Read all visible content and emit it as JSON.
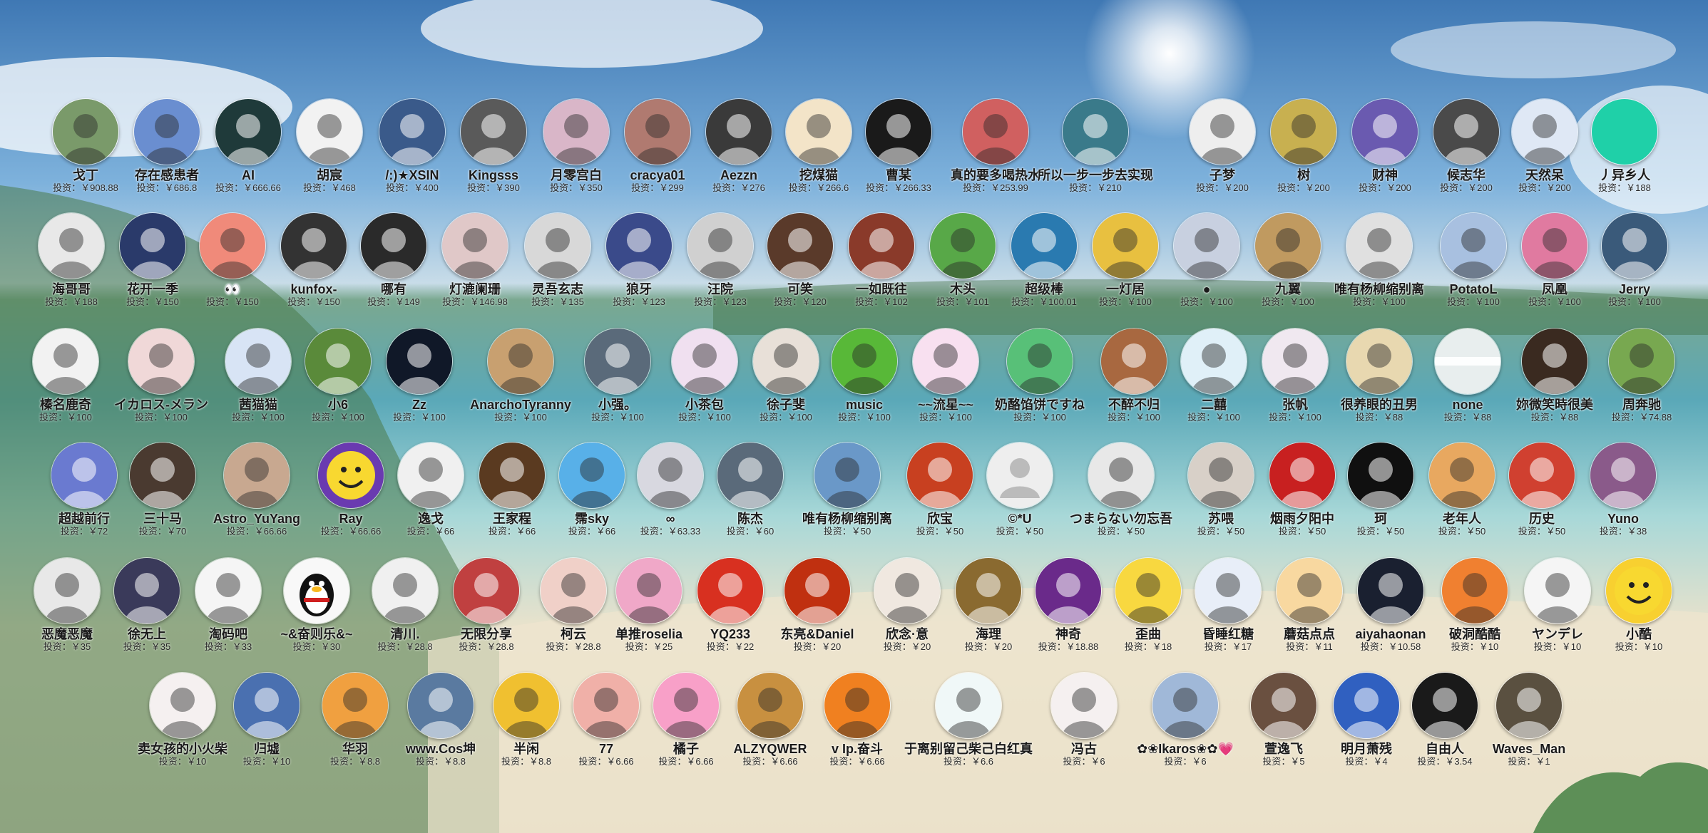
{
  "donors": [
    [
      {
        "name": "戈丁",
        "amount": "投资：￥908.88",
        "color": "#7a9a6a",
        "icon": "avatar-anime-boy"
      },
      {
        "name": "存在感患者",
        "amount": "投资：￥686.8",
        "color": "#6a8ed0",
        "icon": "avatar-anime-battle"
      },
      {
        "name": "AI",
        "amount": "投资：￥666.66",
        "color": "#1f3a3a",
        "icon": "avatar-hooded-figure"
      },
      {
        "name": "胡宸",
        "amount": "投资：￥468",
        "color": "#f2f2f2",
        "icon": "avatar-cartoon-cat"
      },
      {
        "name": "/:)★XSIN",
        "amount": "投资：￥400",
        "color": "#3a5a8a",
        "icon": "avatar-starry-cat"
      },
      {
        "name": "Kingsss",
        "amount": "投资：￥390",
        "color": "#5a5a5a",
        "icon": "avatar-bw-street"
      },
      {
        "name": "月零宫白",
        "amount": "投资：￥350",
        "color": "#d9b6c8",
        "icon": "avatar-anime-girl"
      },
      {
        "name": "cracya01",
        "amount": "投资：￥299",
        "color": "#b07a70",
        "icon": "avatar-anime-duo"
      },
      {
        "name": "Aezzn",
        "amount": "投资：￥276",
        "color": "#3a3a3a",
        "icon": "avatar-dark-sphere"
      },
      {
        "name": "挖煤猫",
        "amount": "投资：￥266.6",
        "color": "#f3e4c8",
        "icon": "avatar-cartoon-cat"
      },
      {
        "name": "曹某",
        "amount": "投资：￥266.33",
        "color": "#1a1a1a",
        "icon": "avatar-dark-hand"
      },
      {
        "name": "真的要多喝热水",
        "amount": "投资：￥253.99",
        "color": "#d06060",
        "icon": "avatar-monkey"
      },
      {
        "name": "所以一步一步去实现",
        "amount": "投资：￥210",
        "color": "#3a7a8a",
        "icon": "avatar-seascape"
      },
      {
        "name": "子梦",
        "amount": "投资：￥200",
        "color": "#eeeeee",
        "icon": "avatar-sketch-girl"
      },
      {
        "name": "树",
        "amount": "投资：￥200",
        "color": "#c8b050",
        "icon": "avatar-clown"
      },
      {
        "name": "财神",
        "amount": "投资：￥200",
        "color": "#6a5ab0",
        "icon": "avatar-rabbit"
      },
      {
        "name": "候志华",
        "amount": "投资：￥200",
        "color": "#4a4a4a",
        "icon": "avatar-man-glasses"
      },
      {
        "name": "天然呆",
        "amount": "投资：￥200",
        "color": "#dfe8f5",
        "icon": "avatar-bunny"
      },
      {
        "name": "丿异乡人",
        "amount": "投资：￥188",
        "color": "#1fd0a8",
        "icon": "avatar-teal-circle"
      }
    ],
    [
      {
        "name": "海哥哥",
        "amount": "投资：￥188",
        "color": "#e8e8e8",
        "icon": "avatar-ink-dragon"
      },
      {
        "name": "花开一季",
        "amount": "投资：￥150",
        "color": "#2a3a6a",
        "icon": "avatar-man-suit"
      },
      {
        "name": "👀",
        "amount": "投资：￥150",
        "color": "#f08a7a",
        "icon": "avatar-3d-baby"
      },
      {
        "name": "kunfox-",
        "amount": "投资：￥150",
        "color": "#333333",
        "icon": "avatar-otaku"
      },
      {
        "name": "哪有",
        "amount": "投资：￥149",
        "color": "#2a2a2a",
        "icon": "avatar-black-orb"
      },
      {
        "name": "灯漉阑珊",
        "amount": "投资：￥146.98",
        "color": "#e0c8c8",
        "icon": "avatar-girl-face"
      },
      {
        "name": "灵吾玄志",
        "amount": "投资：￥135",
        "color": "#d8d8d8",
        "icon": "avatar-manga-hero"
      },
      {
        "name": "狼牙",
        "amount": "投资：￥123",
        "color": "#3a4a8a",
        "icon": "avatar-anime-scarf"
      },
      {
        "name": "汪院",
        "amount": "投资：￥123",
        "color": "#d0d0d0",
        "icon": "avatar-man-portrait"
      },
      {
        "name": "可笑",
        "amount": "投资：￥120",
        "color": "#5a3a2a",
        "icon": "avatar-child"
      },
      {
        "name": "一如既往",
        "amount": "投资：￥102",
        "color": "#8a3a2a",
        "icon": "avatar-warrior"
      },
      {
        "name": "木头",
        "amount": "投资：￥101",
        "color": "#58a848",
        "icon": "avatar-green-cartoon"
      },
      {
        "name": "超级棒",
        "amount": "投资：￥100.01",
        "color": "#2a7ab0",
        "icon": "avatar-blue-mecha"
      },
      {
        "name": "一灯居",
        "amount": "投资：￥100",
        "color": "#e8c040",
        "icon": "avatar-psyduck"
      },
      {
        "name": "●",
        "amount": "投资：￥100",
        "color": "#c8d0e0",
        "icon": "avatar-anime-hair"
      },
      {
        "name": "九翼",
        "amount": "投资：￥100",
        "color": "#c09a60",
        "icon": "avatar-golden-figure"
      },
      {
        "name": "唯有杨柳缩别离",
        "amount": "投资：￥100",
        "color": "#e0e0e0",
        "icon": "avatar-sketch-girl"
      },
      {
        "name": "PotatoL",
        "amount": "投资：￥100",
        "color": "#a8c0e0",
        "icon": "avatar-anime-mage"
      },
      {
        "name": "凤凰",
        "amount": "投资：￥100",
        "color": "#e07aa0",
        "icon": "avatar-pink-animal"
      },
      {
        "name": "Jerry",
        "amount": "投资：￥100",
        "color": "#3a5a7a",
        "icon": "avatar-man-road"
      }
    ],
    [
      {
        "name": "榛名鹿奇",
        "amount": "投资：￥100",
        "color": "#f2f2f2",
        "icon": "avatar-sketch-girl"
      },
      {
        "name": "イカロス-メラン",
        "amount": "投资：￥100",
        "color": "#f0d8d8",
        "icon": "avatar-anime-girl"
      },
      {
        "name": "茜猫猫",
        "amount": "投资：￥100",
        "color": "#d8e4f5",
        "icon": "avatar-anime-girl"
      },
      {
        "name": "小6",
        "amount": "投资：￥100",
        "color": "#5a8a3a",
        "icon": "avatar-zoro"
      },
      {
        "name": "Zz",
        "amount": "投资：￥100",
        "color": "#101828",
        "icon": "avatar-dark-figure"
      },
      {
        "name": "AnarchoTyranny",
        "amount": "投资：￥100",
        "color": "#c8a070",
        "icon": "avatar-anime-boy"
      },
      {
        "name": "小强。",
        "amount": "投资：￥100",
        "color": "#5a6a7a",
        "icon": "avatar-anime-lying"
      },
      {
        "name": "小茶包",
        "amount": "投资：￥100",
        "color": "#f0e0f0",
        "icon": "avatar-anime-girl"
      },
      {
        "name": "徐子斐",
        "amount": "投资：￥100",
        "color": "#e8e0d8",
        "icon": "avatar-girl-face"
      },
      {
        "name": "music",
        "amount": "投资：￥100",
        "color": "#58b838",
        "icon": "avatar-penguin"
      },
      {
        "name": "~~流星~~",
        "amount": "投资：￥100",
        "color": "#f8e0f0",
        "icon": "avatar-lotus"
      },
      {
        "name": "奶酪馅饼ですね",
        "amount": "投资：￥100",
        "color": "#58c078",
        "icon": "avatar-green-hair"
      },
      {
        "name": "不醉不归",
        "amount": "投资：￥100",
        "color": "#a86840",
        "icon": "avatar-bear"
      },
      {
        "name": "二囍",
        "amount": "投资：￥100",
        "color": "#e0f0f8",
        "icon": "avatar-white-cat"
      },
      {
        "name": "张帆",
        "amount": "投资：￥100",
        "color": "#f0e8f0",
        "icon": "avatar-fox"
      },
      {
        "name": "很养眼的丑男",
        "amount": "投资：￥88",
        "color": "#e8d8b0",
        "icon": "avatar-cartoon-boy"
      },
      {
        "name": "none",
        "amount": "投资：￥88",
        "color": "#e8eeee",
        "icon": "avatar-blank"
      },
      {
        "name": "妳微笑時很美",
        "amount": "投资：￥88",
        "color": "#3a2a20",
        "icon": "avatar-man-portrait"
      },
      {
        "name": "周奔驰",
        "amount": "投资：￥74.88",
        "color": "#78a850",
        "icon": "avatar-landscape"
      }
    ],
    [
      {
        "name": "超越前行",
        "amount": "投资：￥72",
        "color": "#6a7ad0",
        "icon": "avatar-jets"
      },
      {
        "name": "三十马",
        "amount": "投资：￥70",
        "color": "#4a3a30",
        "icon": "avatar-anime-knight"
      },
      {
        "name": "Astro_YuYang",
        "amount": "投资：￥66.66",
        "color": "#c8a890",
        "icon": "avatar-anime-boy"
      },
      {
        "name": "Ray",
        "amount": "投资：￥66.66",
        "color": "#6a3ab0",
        "icon": "avatar-smiley"
      },
      {
        "name": "逸戈",
        "amount": "投资：￥66",
        "color": "#f0f0f0",
        "icon": "avatar-white-cat"
      },
      {
        "name": "王家程",
        "amount": "投资：￥66",
        "color": "#5a3a20",
        "icon": "avatar-bear"
      },
      {
        "name": "霈sky",
        "amount": "投资：￥66",
        "color": "#58b0e8",
        "icon": "avatar-squirtle"
      },
      {
        "name": "∞",
        "amount": "投资：￥63.33",
        "color": "#d8d8e0",
        "icon": "avatar-anime-boy"
      },
      {
        "name": "陈杰",
        "amount": "投资：￥60",
        "color": "#5a6a7a",
        "icon": "avatar-cat-eye"
      },
      {
        "name": "唯有杨柳缩别离",
        "amount": "投资：￥50",
        "color": "#6a98c8",
        "icon": "avatar-ice-figure"
      },
      {
        "name": "欣宝",
        "amount": "投资：￥50",
        "color": "#c84020",
        "icon": "avatar-xing-char"
      },
      {
        "name": "©*U",
        "amount": "投资：￥50",
        "color": "#eeeeee",
        "icon": "avatar-default-user"
      },
      {
        "name": "つまらない勿忘吾",
        "amount": "投资：￥50",
        "color": "#e8e8e8",
        "icon": "avatar-sketch-boy"
      },
      {
        "name": "苏喂",
        "amount": "投资：￥50",
        "color": "#d8d0c8",
        "icon": "avatar-anime-boy"
      },
      {
        "name": "烟雨夕阳中",
        "amount": "投资：￥50",
        "color": "#c82020",
        "icon": "avatar-lucky-bag"
      },
      {
        "name": "珂",
        "amount": "投资：￥50",
        "color": "#101010",
        "icon": "avatar-line-art"
      },
      {
        "name": "老年人",
        "amount": "投资：￥50",
        "color": "#e8a860",
        "icon": "avatar-shiba"
      },
      {
        "name": "历史",
        "amount": "投资：￥50",
        "color": "#d04030",
        "icon": "avatar-cool-face"
      },
      {
        "name": "Yuno",
        "amount": "投资：￥38",
        "color": "#8a5a8a",
        "icon": "avatar-anime-girl"
      }
    ],
    [
      {
        "name": "恶魔恶魔",
        "amount": "投资：￥35",
        "color": "#e8e8e8",
        "icon": "avatar-sketch-girl"
      },
      {
        "name": "徐无上",
        "amount": "投资：￥35",
        "color": "#3a3a5a",
        "icon": "avatar-anime-girl"
      },
      {
        "name": "淘码吧",
        "amount": "投资：￥33",
        "color": "#f5f5f5",
        "icon": "avatar-panda-meme"
      },
      {
        "name": "~&奋则乐&~",
        "amount": "投资：￥30",
        "color": "#f8f8f8",
        "icon": "avatar-qq-penguin"
      },
      {
        "name": "清川.",
        "amount": "投资：￥28.8",
        "color": "#f0f0f0",
        "icon": "avatar-bw-man"
      },
      {
        "name": "无限分享",
        "amount": "投资：￥28.8",
        "color": "#c04040",
        "icon": "avatar-opera-mask"
      },
      {
        "name": "柯云",
        "amount": "投资：￥28.8",
        "color": "#f0d0c8",
        "icon": "avatar-cute-girl"
      },
      {
        "name": "单推roselia",
        "amount": "投资：￥25",
        "color": "#f0a8c8",
        "icon": "avatar-anime-girl"
      },
      {
        "name": "YQ233",
        "amount": "投资：￥22",
        "color": "#d83020",
        "icon": "avatar-cartoon-boy"
      },
      {
        "name": "东亮&Daniel",
        "amount": "投资：￥20",
        "color": "#c03010",
        "icon": "avatar-fire-horse"
      },
      {
        "name": "欣念·意",
        "amount": "投资：￥20",
        "color": "#f0e8e0",
        "icon": "avatar-anime-girl"
      },
      {
        "name": "海理",
        "amount": "投资：￥20",
        "color": "#8a6a30",
        "icon": "avatar-corridor"
      },
      {
        "name": "神奇",
        "amount": "投资：￥18.88",
        "color": "#6a2a8a",
        "icon": "avatar-anime-girl"
      },
      {
        "name": "歪曲",
        "amount": "投资：￥18",
        "color": "#f8d840",
        "icon": "avatar-black-cat"
      },
      {
        "name": "昏睡红糖",
        "amount": "投资：￥17",
        "color": "#e8eef8",
        "icon": "avatar-anime-girl"
      },
      {
        "name": "蘑菇点点",
        "amount": "投资：￥11",
        "color": "#f8d8a0",
        "icon": "avatar-cartoon-chick"
      },
      {
        "name": "aiyahaonan",
        "amount": "投资：￥10.58",
        "color": "#1a2030",
        "icon": "avatar-dark-sphere"
      },
      {
        "name": "破洞酷酷",
        "amount": "投资：￥10",
        "color": "#f08030",
        "icon": "avatar-anime-orange"
      },
      {
        "name": "ヤンデレ",
        "amount": "投资：￥10",
        "color": "#f5f5f5",
        "icon": "avatar-sketch-girl"
      },
      {
        "name": "小酷",
        "amount": "投资：￥10",
        "color": "#f8d030",
        "icon": "avatar-emoji-face"
      }
    ],
    [
      {
        "name": "卖女孩的小火柴",
        "amount": "投资：￥10",
        "color": "#f5f0f0",
        "icon": "avatar-sketch-girl"
      },
      {
        "name": "归墟",
        "amount": "投资：￥10",
        "color": "#4a70b0",
        "icon": "avatar-art"
      },
      {
        "name": "华羽",
        "amount": "投资：￥8.8",
        "color": "#f0a040",
        "icon": "avatar-anime-boy"
      },
      {
        "name": "www.Cos坤",
        "amount": "投资：￥8.8",
        "color": "#5a7aa0",
        "icon": "avatar-mountain"
      },
      {
        "name": "半闲",
        "amount": "投资：￥8.8",
        "color": "#f0c030",
        "icon": "avatar-luffy"
      },
      {
        "name": "77",
        "amount": "投资：￥6.66",
        "color": "#f0b0a8",
        "icon": "avatar-anime-girl"
      },
      {
        "name": "橘子",
        "amount": "投资：￥6.66",
        "color": "#f8a0c8",
        "icon": "avatar-anime-girl"
      },
      {
        "name": "ALZYQWER",
        "amount": "投资：￥6.66",
        "color": "#c89040",
        "icon": "avatar-cartoon-boy"
      },
      {
        "name": "v Ip.奋斗",
        "amount": "投资：￥6.66",
        "color": "#f08020",
        "icon": "avatar-orange"
      },
      {
        "name": "于离别留己柴己白红真",
        "amount": "投资：￥6.6",
        "color": "#f0f8f8",
        "icon": "avatar-blue-monster"
      },
      {
        "name": "冯古",
        "amount": "投资：￥6",
        "color": "#f5f0f0",
        "icon": "avatar-cartoon-boy"
      },
      {
        "name": "✿❀Ikaros❀✿💗",
        "amount": "投资：￥6",
        "color": "#a0b8d8",
        "icon": "avatar-anime-girl"
      },
      {
        "name": "萱逸飞",
        "amount": "投资：￥5",
        "color": "#6a5040",
        "icon": "avatar-man-portrait"
      },
      {
        "name": "明月萧残",
        "amount": "投资：￥4",
        "color": "#3060c0",
        "icon": "avatar-glass-sphere"
      },
      {
        "name": "自由人",
        "amount": "投资：￥3.54",
        "color": "#1a1a1a",
        "icon": "avatar-dark-figure"
      },
      {
        "name": "Waves_Man",
        "amount": "投资：￥1",
        "color": "#5a5040",
        "icon": "avatar-anime-boy"
      }
    ]
  ]
}
